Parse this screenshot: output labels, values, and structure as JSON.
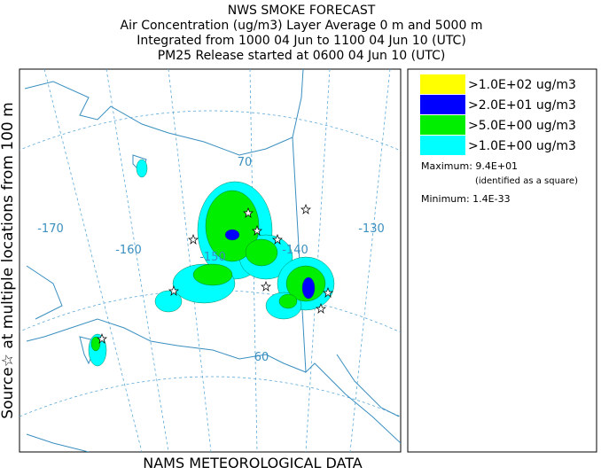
{
  "header": {
    "title": "NWS SMOKE FORECAST",
    "lines": [
      "Air Concentration (ug/m3) Layer Average    0 m and  5000 m",
      "Integrated from 1000 04 Jun to 1100 04 Jun 10 (UTC)",
      "PM25 Release started at 0600 04 Jun 10 (UTC)"
    ]
  },
  "map": {
    "side_label": "Source☆ at multiple locations    from   100 m",
    "footer": "NAMS METEOROLOGICAL DATA",
    "graticule_labels": [
      "-170",
      "-160",
      "-150",
      "-140",
      "-130",
      "70",
      "60"
    ]
  },
  "legend": {
    "entries": [
      {
        "label": ">1.0E+02 ug/m3",
        "color": "#ffff00"
      },
      {
        "label": ">2.0E+01 ug/m3",
        "color": "#0000ff"
      },
      {
        "label": ">5.0E+00 ug/m3",
        "color": "#00ee00"
      },
      {
        "label": ">1.0E+00 ug/m3",
        "color": "#00ffff"
      }
    ],
    "maximum": "Maximum: 9.4E+01",
    "maximum_note": "(identified as a square)",
    "minimum": "Minimum: 1.4E-33"
  }
}
